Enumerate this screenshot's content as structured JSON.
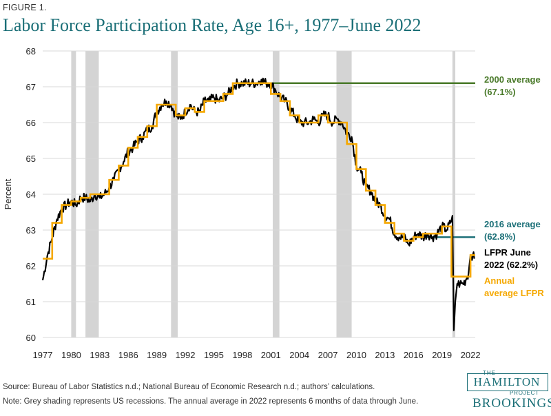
{
  "figure_label": "FIGURE 1.",
  "title": "Labor Force Participation Rate, Age 16+, 1977–June 2022",
  "source": "Source: Bureau of Labor Statistics n.d.; National Bureau of Economic Research n.d.; authors’ calculations.",
  "note": "Note: Grey shading represents US recessions. The annual average in 2022 represents 6 months of data through June.",
  "logo": {
    "the": "THE",
    "hamilton": "HAMILTON",
    "project": "PROJECT",
    "brookings": "BROOKINGS"
  },
  "colors": {
    "lfpr": "#000000",
    "annual": "#f5a800",
    "avg2000": "#4a7a2a",
    "avg2016": "#1b6f77",
    "recession": "#d4d4d4",
    "grid": "#d9d9d9"
  },
  "chart_data": {
    "type": "line",
    "title": "Labor Force Participation Rate, Age 16+, 1977–June 2022",
    "ylabel": "Percent",
    "xlabel": "",
    "xlim": [
      1977,
      2022.5
    ],
    "ylim": [
      60,
      68
    ],
    "yticks": [
      60,
      61,
      62,
      63,
      64,
      65,
      66,
      67,
      68
    ],
    "xticks": [
      1977,
      1980,
      1983,
      1986,
      1989,
      1992,
      1995,
      1998,
      2001,
      2004,
      2007,
      2010,
      2013,
      2016,
      2019,
      2022
    ],
    "grid": "horizontal",
    "recessions": [
      [
        1980.0,
        1980.5
      ],
      [
        1981.5,
        1982.9
      ],
      [
        1990.5,
        1991.2
      ],
      [
        2001.2,
        2001.9
      ],
      [
        2007.9,
        2009.5
      ],
      [
        2020.1,
        2020.4
      ]
    ],
    "reference_lines": [
      {
        "name": "2000 average",
        "label_line1": "2000 average",
        "label_line2": "(67.1%)",
        "value": 67.1,
        "x_start": 2001.0,
        "color": "#4a7a2a"
      },
      {
        "name": "2016 average",
        "label_line1": "2016 average",
        "label_line2": "(62.8%)",
        "value": 62.8,
        "x_start": 2016.0,
        "color": "#1b6f77"
      }
    ],
    "annotations": [
      {
        "line1": "LFPR June",
        "line2": "2022 (62.2%)",
        "color": "#000000"
      },
      {
        "line1": "Annual",
        "line2": "average LFPR",
        "color": "#f5a800"
      }
    ],
    "series": [
      {
        "name": "LFPR",
        "monthly": true,
        "anchors": [
          [
            1977.0,
            61.6
          ],
          [
            1977.5,
            62.3
          ],
          [
            1978.0,
            62.8
          ],
          [
            1978.5,
            63.3
          ],
          [
            1979.0,
            63.6
          ],
          [
            1979.5,
            63.7
          ],
          [
            1980.0,
            63.8
          ],
          [
            1980.5,
            63.7
          ],
          [
            1981.0,
            63.9
          ],
          [
            1981.5,
            63.9
          ],
          [
            1982.0,
            63.8
          ],
          [
            1982.5,
            64.0
          ],
          [
            1983.0,
            63.9
          ],
          [
            1983.5,
            64.0
          ],
          [
            1984.0,
            64.2
          ],
          [
            1984.5,
            64.4
          ],
          [
            1985.0,
            64.7
          ],
          [
            1985.5,
            64.9
          ],
          [
            1986.0,
            65.2
          ],
          [
            1986.5,
            65.3
          ],
          [
            1987.0,
            65.5
          ],
          [
            1987.5,
            65.6
          ],
          [
            1988.0,
            65.8
          ],
          [
            1988.5,
            65.9
          ],
          [
            1989.0,
            66.3
          ],
          [
            1989.5,
            66.5
          ],
          [
            1990.0,
            66.6
          ],
          [
            1990.5,
            66.5
          ],
          [
            1991.0,
            66.2
          ],
          [
            1991.5,
            66.1
          ],
          [
            1992.0,
            66.3
          ],
          [
            1992.5,
            66.5
          ],
          [
            1993.0,
            66.3
          ],
          [
            1993.5,
            66.3
          ],
          [
            1994.0,
            66.6
          ],
          [
            1994.5,
            66.6
          ],
          [
            1995.0,
            66.7
          ],
          [
            1995.5,
            66.6
          ],
          [
            1996.0,
            66.7
          ],
          [
            1996.5,
            66.8
          ],
          [
            1997.0,
            67.0
          ],
          [
            1997.5,
            67.1
          ],
          [
            1998.0,
            67.1
          ],
          [
            1998.5,
            67.1
          ],
          [
            1999.0,
            67.1
          ],
          [
            1999.5,
            67.1
          ],
          [
            2000.0,
            67.2
          ],
          [
            2000.5,
            67.1
          ],
          [
            2001.0,
            67.1
          ],
          [
            2001.5,
            66.9
          ],
          [
            2002.0,
            66.7
          ],
          [
            2002.5,
            66.6
          ],
          [
            2003.0,
            66.4
          ],
          [
            2003.5,
            66.2
          ],
          [
            2004.0,
            66.0
          ],
          [
            2004.5,
            66.0
          ],
          [
            2005.0,
            66.0
          ],
          [
            2005.5,
            66.1
          ],
          [
            2006.0,
            66.0
          ],
          [
            2006.5,
            66.2
          ],
          [
            2007.0,
            66.2
          ],
          [
            2007.5,
            66.0
          ],
          [
            2008.0,
            66.1
          ],
          [
            2008.5,
            66.0
          ],
          [
            2009.0,
            65.7
          ],
          [
            2009.5,
            65.6
          ],
          [
            2010.0,
            64.8
          ],
          [
            2010.5,
            64.6
          ],
          [
            2011.0,
            64.2
          ],
          [
            2011.5,
            64.1
          ],
          [
            2012.0,
            63.8
          ],
          [
            2012.5,
            63.7
          ],
          [
            2013.0,
            63.4
          ],
          [
            2013.5,
            63.3
          ],
          [
            2014.0,
            62.9
          ],
          [
            2014.5,
            62.8
          ],
          [
            2015.0,
            62.8
          ],
          [
            2015.5,
            62.6
          ],
          [
            2016.0,
            62.8
          ],
          [
            2016.5,
            62.9
          ],
          [
            2017.0,
            62.8
          ],
          [
            2017.5,
            62.9
          ],
          [
            2018.0,
            62.8
          ],
          [
            2018.5,
            62.9
          ],
          [
            2019.0,
            63.1
          ],
          [
            2019.5,
            63.0
          ],
          [
            2019.9,
            63.2
          ],
          [
            2020.1,
            63.4
          ],
          [
            2020.25,
            60.2
          ],
          [
            2020.4,
            61.0
          ],
          [
            2020.6,
            61.5
          ],
          [
            2020.9,
            61.5
          ],
          [
            2021.2,
            61.5
          ],
          [
            2021.5,
            61.6
          ],
          [
            2021.8,
            61.8
          ],
          [
            2022.0,
            62.3
          ],
          [
            2022.25,
            62.3
          ],
          [
            2022.4,
            62.2
          ]
        ]
      },
      {
        "name": "Annual average LFPR",
        "annual": [
          [
            1977,
            62.2
          ],
          [
            1978,
            63.2
          ],
          [
            1979,
            63.7
          ],
          [
            1980,
            63.8
          ],
          [
            1981,
            63.9
          ],
          [
            1982,
            64.0
          ],
          [
            1983,
            64.0
          ],
          [
            1984,
            64.4
          ],
          [
            1985,
            64.8
          ],
          [
            1986,
            65.3
          ],
          [
            1987,
            65.6
          ],
          [
            1988,
            65.9
          ],
          [
            1989,
            66.5
          ],
          [
            1990,
            66.5
          ],
          [
            1991,
            66.2
          ],
          [
            1992,
            66.4
          ],
          [
            1993,
            66.3
          ],
          [
            1994,
            66.6
          ],
          [
            1995,
            66.6
          ],
          [
            1996,
            66.8
          ],
          [
            1997,
            67.1
          ],
          [
            1998,
            67.1
          ],
          [
            1999,
            67.1
          ],
          [
            2000,
            67.1
          ],
          [
            2001,
            66.8
          ],
          [
            2002,
            66.6
          ],
          [
            2003,
            66.2
          ],
          [
            2004,
            66.0
          ],
          [
            2005,
            66.0
          ],
          [
            2006,
            66.2
          ],
          [
            2007,
            66.0
          ],
          [
            2008,
            66.0
          ],
          [
            2009,
            65.4
          ],
          [
            2010,
            64.7
          ],
          [
            2011,
            64.1
          ],
          [
            2012,
            63.7
          ],
          [
            2013,
            63.2
          ],
          [
            2014,
            62.9
          ],
          [
            2015,
            62.7
          ],
          [
            2016,
            62.8
          ],
          [
            2017,
            62.9
          ],
          [
            2018,
            62.9
          ],
          [
            2019,
            63.1
          ],
          [
            2020,
            61.7
          ],
          [
            2021,
            61.7
          ],
          [
            2022,
            62.3
          ]
        ]
      }
    ]
  }
}
